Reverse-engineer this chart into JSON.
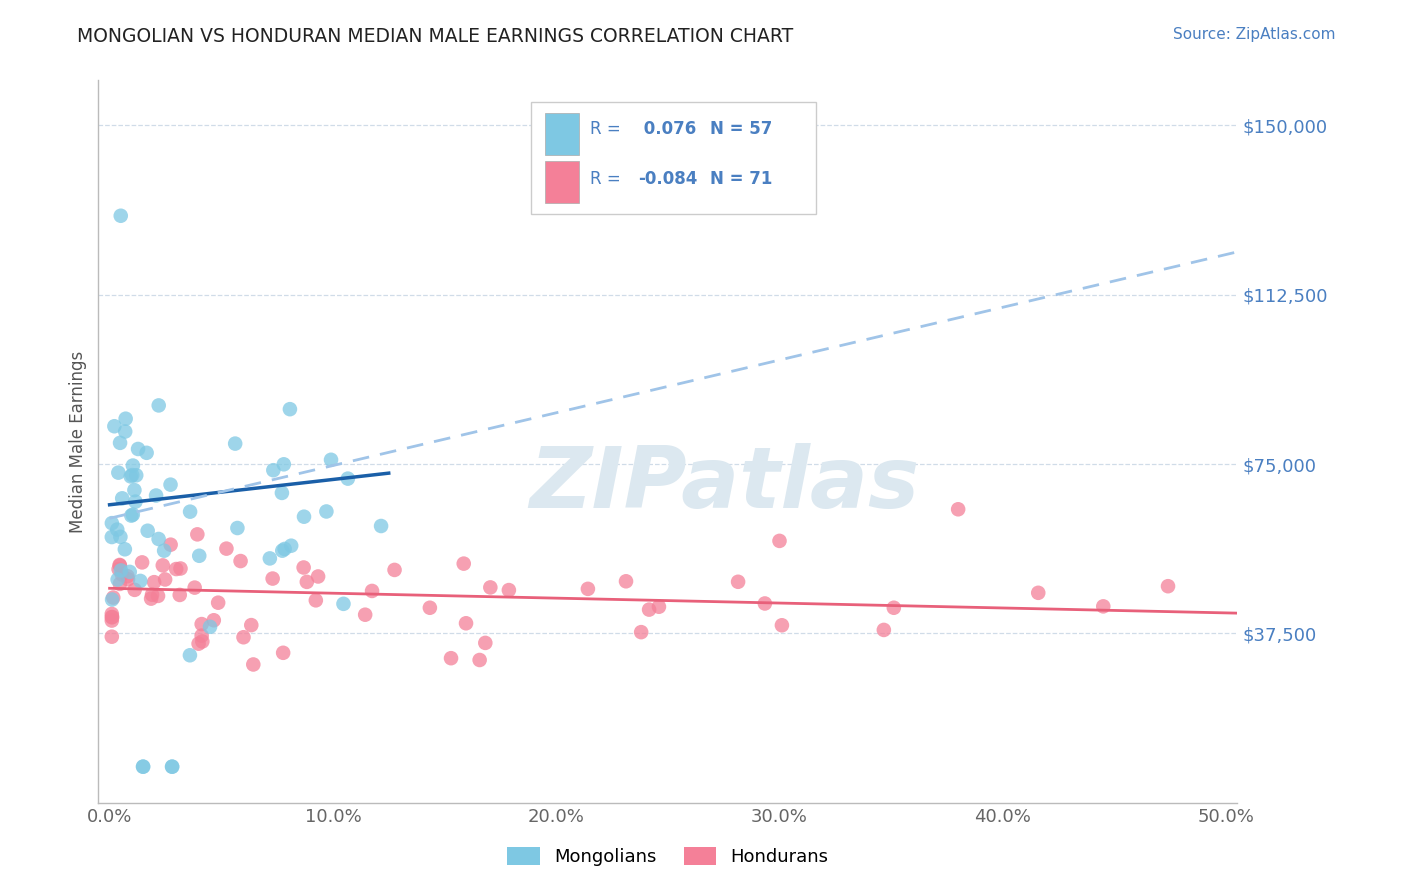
{
  "title": "MONGOLIAN VS HONDURAN MEDIAN MALE EARNINGS CORRELATION CHART",
  "source": "Source: ZipAtlas.com",
  "ylabel": "Median Male Earnings",
  "xlabel": "",
  "xlim": [
    -0.005,
    0.505
  ],
  "ylim": [
    0,
    160000
  ],
  "yticks": [
    37500,
    75000,
    112500,
    150000
  ],
  "ytick_labels": [
    "$37,500",
    "$75,000",
    "$112,500",
    "$150,000"
  ],
  "xticks": [
    0.0,
    0.1,
    0.2,
    0.3,
    0.4,
    0.5
  ],
  "xtick_labels": [
    "0.0%",
    "10.0%",
    "20.0%",
    "30.0%",
    "40.0%",
    "50.0%"
  ],
  "mongolian_color": "#7ec8e3",
  "honduran_color": "#f48098",
  "trend_mongolian_solid_color": "#1a5fa8",
  "trend_mongolian_dash_color": "#a0c4e8",
  "trend_honduran_color": "#e8607a",
  "background_color": "#ffffff",
  "grid_color": "#d0dce8",
  "title_color": "#222222",
  "axis_color": "#4a7fc1",
  "source_color": "#4a7fc1",
  "watermark_color": "#dce8f0",
  "legend_r_color": "#4a7fc1"
}
